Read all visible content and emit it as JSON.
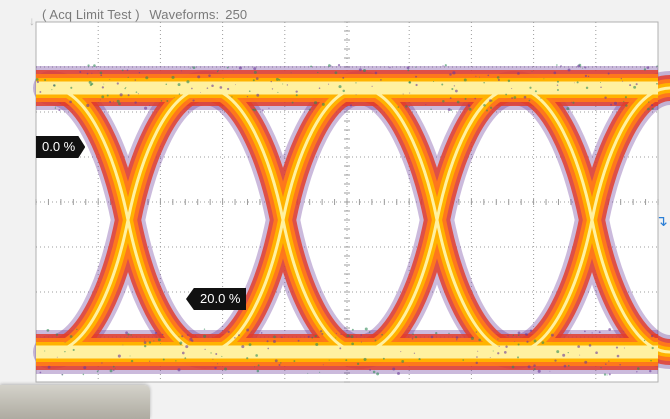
{
  "status_bar": {
    "mode": "( Acq Limit Test )",
    "waveforms_label": "Waveforms:",
    "waveforms_count": "250"
  },
  "markers": {
    "upper_ref": "0.0 %",
    "lower_ref": "20.0 %"
  },
  "colors": {
    "background": "#ffffff",
    "grid": "#9c9c9c",
    "hot": "#fff1a0",
    "warm": "#ffb300",
    "mid": "#ff7a1a",
    "cool": "#e23d2d",
    "cold": "#6a3a9a",
    "trigger_marker": "#2c7fd6"
  },
  "icons": {
    "trigger_level": "trigger-level-arrow-icon",
    "channel": "channel-ground-marker-icon"
  }
}
